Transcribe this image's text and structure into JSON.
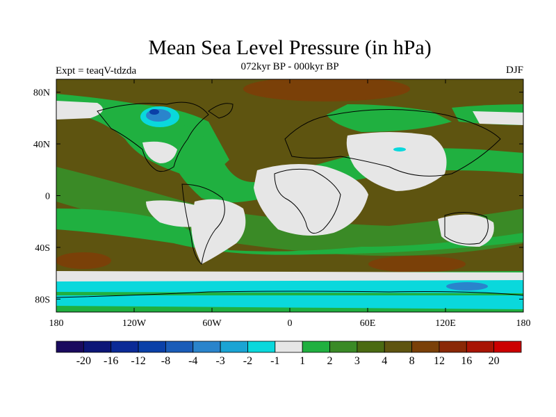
{
  "title": "Mean Sea Level Pressure (in hPa)",
  "subtitle": "072kyr BP - 000kyr BP",
  "experiment_label": "Expt = teaqV-tdzda",
  "season_label": "DJF",
  "lat_axis": {
    "ticks": [
      {
        "value": 80,
        "label": "80N"
      },
      {
        "value": 40,
        "label": "40N"
      },
      {
        "value": 0,
        "label": "0"
      },
      {
        "value": -40,
        "label": "40S"
      },
      {
        "value": -80,
        "label": "80S"
      }
    ]
  },
  "lon_axis": {
    "ticks": [
      {
        "value": -180,
        "label": "180"
      },
      {
        "value": -120,
        "label": "120W"
      },
      {
        "value": -60,
        "label": "60W"
      },
      {
        "value": 0,
        "label": "0"
      },
      {
        "value": 60,
        "label": "60E"
      },
      {
        "value": 120,
        "label": "120E"
      },
      {
        "value": 180,
        "label": "180"
      }
    ]
  },
  "colorbar": {
    "colors": [
      "#1a0a5e",
      "#0c1677",
      "#0b2a96",
      "#0a40a8",
      "#1a5cb8",
      "#2a84cc",
      "#1aa4d4",
      "#0ad8dc",
      "#e6e6e6",
      "#20b040",
      "#3a8a26",
      "#4a6a12",
      "#5e5410",
      "#7a4008",
      "#8a2806",
      "#a81404",
      "#cc0000"
    ],
    "labels": [
      "-20",
      "-16",
      "-12",
      "-8",
      "-4",
      "-3",
      "-2",
      "-1",
      "1",
      "2",
      "3",
      "4",
      "8",
      "12",
      "16",
      "20"
    ]
  },
  "chart_data": {
    "type": "map",
    "title": "Mean Sea Level Pressure (in hPa)",
    "subtitle": "072kyr BP - 000kyr BP",
    "experiment": "Expt = teaqV-tdzda",
    "season": "DJF",
    "lon_range": [
      -180,
      180
    ],
    "lat_range": [
      -90,
      90
    ],
    "legend_placement": "bottom",
    "contour_levels": [
      -20,
      -16,
      -12,
      -8,
      -4,
      -3,
      -2,
      -1,
      1,
      2,
      3,
      4,
      8,
      12,
      16,
      20
    ]
  }
}
